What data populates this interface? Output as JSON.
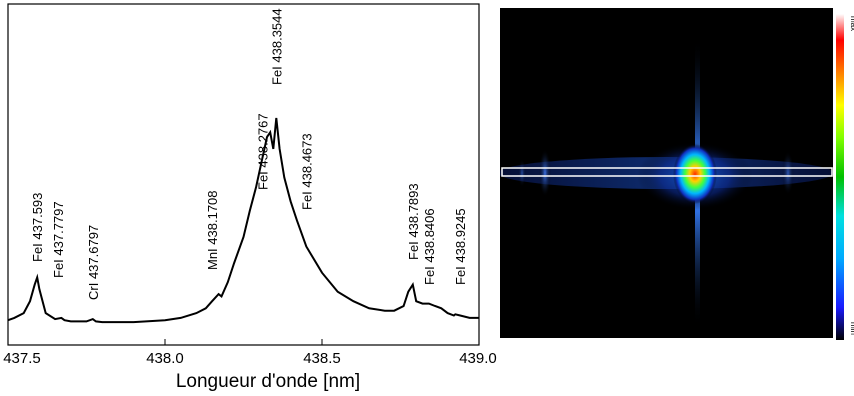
{
  "chart_data": [
    {
      "type": "line",
      "title": "",
      "xlabel": "Longueur d'onde [nm]",
      "ylabel": "",
      "xlim": [
        437.5,
        439.0
      ],
      "ylim": [
        0,
        1.0
      ],
      "grid": false,
      "xticks": [
        "437.5",
        "438.0",
        "438.5",
        "439.0"
      ],
      "xtick_values": [
        437.5,
        438.0,
        438.5,
        439.0
      ],
      "series": [
        {
          "x": [
            437.5,
            437.52,
            437.55,
            437.57,
            437.585,
            437.593,
            437.6,
            437.62,
            437.65,
            437.67,
            437.68,
            437.7,
            437.75,
            437.77,
            437.78,
            437.8,
            437.9,
            438.0,
            438.05,
            438.1,
            438.13,
            438.15,
            438.1708,
            438.18,
            438.2,
            438.22,
            438.25,
            438.27,
            438.29,
            438.31,
            438.325,
            438.335,
            438.345,
            438.3544,
            438.365,
            438.38,
            438.4,
            438.42,
            438.45,
            438.5,
            438.55,
            438.6,
            438.65,
            438.7,
            438.73,
            438.76,
            438.775,
            438.7893,
            438.8,
            438.82,
            438.8406,
            438.86,
            438.88,
            438.9,
            438.92,
            438.9245,
            438.94,
            438.97,
            439.0
          ],
          "values": [
            0.02,
            0.03,
            0.05,
            0.1,
            0.17,
            0.2,
            0.15,
            0.05,
            0.025,
            0.03,
            0.02,
            0.015,
            0.015,
            0.025,
            0.015,
            0.012,
            0.012,
            0.02,
            0.03,
            0.05,
            0.07,
            0.1,
            0.13,
            0.12,
            0.18,
            0.26,
            0.37,
            0.48,
            0.58,
            0.7,
            0.79,
            0.81,
            0.74,
            0.87,
            0.74,
            0.62,
            0.52,
            0.44,
            0.33,
            0.22,
            0.14,
            0.1,
            0.07,
            0.06,
            0.06,
            0.08,
            0.14,
            0.17,
            0.1,
            0.09,
            0.09,
            0.08,
            0.07,
            0.05,
            0.04,
            0.045,
            0.04,
            0.03,
            0.03
          ]
        }
      ],
      "annotations": [
        {
          "text": "FeI  437.593",
          "x": 437.593,
          "y": 0.2
        },
        {
          "text": "FeI  437.7797",
          "x": 437.66,
          "y": 0.03
        },
        {
          "text": "CrI  437.6797",
          "x": 437.77,
          "y": 0.02
        },
        {
          "text": "MnI  438.1708",
          "x": 438.15,
          "y": 0.13
        },
        {
          "text": "FeI  438.2767",
          "x": 438.31,
          "y": 0.81
        },
        {
          "text": "FeI  438.3544",
          "x": 438.3544,
          "y": 0.87
        },
        {
          "text": "FeI  438.4673",
          "x": 438.45,
          "y": 0.52
        },
        {
          "text": "FeI  438.7893",
          "x": 438.7893,
          "y": 0.17
        },
        {
          "text": "FeI  438.8406",
          "x": 438.84,
          "y": 0.1
        },
        {
          "text": "FeI  438.9245",
          "x": 438.94,
          "y": 0.05
        }
      ]
    },
    {
      "type": "heatmap",
      "title": "",
      "colorbar": {
        "colors": [
          "#000000",
          "#1a1aff",
          "#00aaff",
          "#00e0e0",
          "#00c000",
          "#80ff00",
          "#ffff00",
          "#ff8000",
          "#ff0000",
          "#ffffff"
        ],
        "max_label": "max",
        "min_label": "min"
      }
    }
  ]
}
